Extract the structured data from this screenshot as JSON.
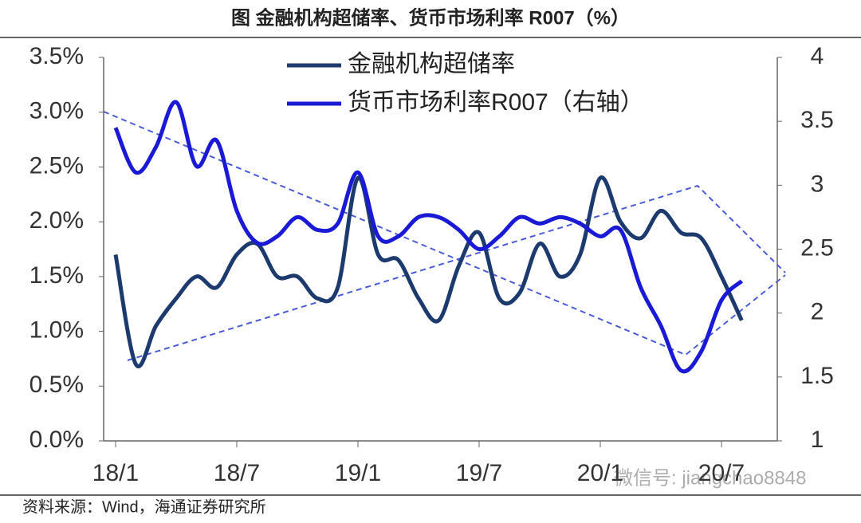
{
  "chart_data": {
    "type": "line",
    "title": "图  金融机构超储率、货币市场利率 R007（%）",
    "source": "资料来源：Wind，海通证券研究所",
    "watermark": "微信号: jiangchao8848",
    "categories": [
      "18/1",
      null,
      null,
      null,
      null,
      null,
      "18/7",
      null,
      null,
      null,
      null,
      null,
      "19/1",
      null,
      null,
      null,
      null,
      null,
      "19/7",
      null,
      null,
      null,
      null,
      null,
      "20/1",
      null,
      null,
      null,
      null,
      null,
      "20/7",
      null
    ],
    "ylim": [
      0,
      3.5
    ],
    "yticks": [
      {
        "value": 0,
        "label": "0.0%"
      },
      {
        "value": 0.5,
        "label": "0.5%"
      },
      {
        "value": 1,
        "label": "1.0%"
      },
      {
        "value": 1.5,
        "label": "1.5%"
      },
      {
        "value": 2,
        "label": "2.0%"
      },
      {
        "value": 2.5,
        "label": "2.5%"
      },
      {
        "value": 3,
        "label": "3.0%"
      },
      {
        "value": 3.5,
        "label": "3.5%"
      }
    ],
    "y2lim": [
      1,
      4
    ],
    "y2ticks": [
      1,
      1.5,
      2,
      2.5,
      3,
      3.5,
      4
    ],
    "grid": false,
    "legend": "top",
    "series": [
      {
        "name": "金融机构超储率",
        "color": "#1c3a6e",
        "axis": "y",
        "values": [
          1.7,
          0.7,
          1.05,
          1.3,
          1.5,
          1.4,
          1.7,
          1.8,
          1.5,
          1.5,
          1.3,
          1.4,
          2.4,
          1.7,
          1.65,
          1.3,
          1.1,
          1.6,
          1.9,
          1.3,
          1.35,
          1.8,
          1.5,
          1.7,
          2.4,
          2.0,
          1.85,
          2.1,
          1.9,
          1.85,
          1.5,
          1.1
        ]
      },
      {
        "name": "货币市场利率R007（右轴）",
        "color": "#1a1ad6",
        "axis": "y2",
        "values": [
          3.45,
          3.1,
          3.3,
          3.65,
          3.15,
          3.35,
          2.8,
          2.55,
          2.6,
          2.75,
          2.65,
          2.7,
          3.1,
          2.6,
          2.6,
          2.75,
          2.75,
          2.65,
          2.5,
          2.6,
          2.75,
          2.7,
          2.75,
          2.7,
          2.6,
          2.65,
          2.2,
          1.9,
          1.55,
          1.7,
          2.1,
          2.25
        ]
      }
    ]
  }
}
